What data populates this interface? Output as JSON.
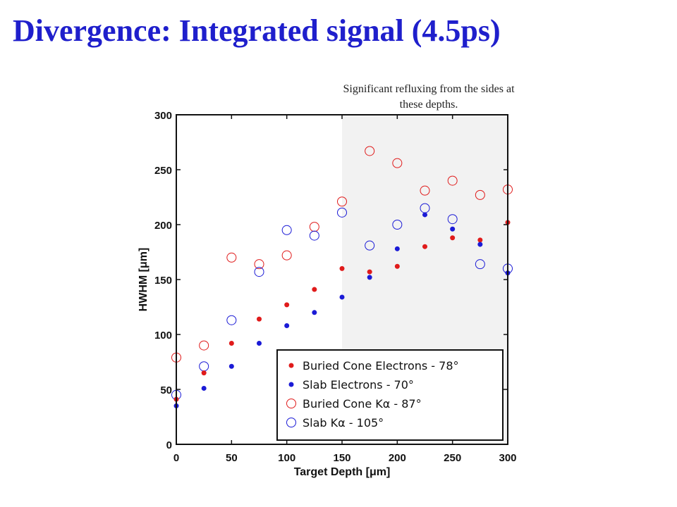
{
  "slide": {
    "title": "Divergence: Integrated signal (4.5ps)",
    "note": "Significant refluxing from the sides at these depths."
  },
  "colors": {
    "title": "#1f1fcc",
    "red": "#e01b1b",
    "blue": "#1b1bd6",
    "shade": "#f2f2f2"
  },
  "chart_data": {
    "type": "scatter",
    "xlabel": "Target Depth [μm]",
    "ylabel": "HWHM [μm]",
    "xlim": [
      0,
      300
    ],
    "ylim": [
      0,
      300
    ],
    "xticks": [
      0,
      50,
      100,
      150,
      200,
      250,
      300
    ],
    "yticks": [
      0,
      50,
      100,
      150,
      200,
      250,
      300
    ],
    "grid": false,
    "legend_position": "bottom-right",
    "shaded_region": {
      "x_from": 150,
      "x_to": 300,
      "color": "#f2f2f2"
    },
    "series": [
      {
        "name": "Buried Cone Electrons - 78°",
        "marker": "filled",
        "color": "#e01b1b",
        "x": [
          0,
          25,
          50,
          75,
          100,
          125,
          150,
          175,
          200,
          225,
          250,
          275,
          300
        ],
        "y": [
          41,
          65,
          92,
          114,
          127,
          141,
          160,
          157,
          162,
          180,
          188,
          186,
          202
        ]
      },
      {
        "name": "Slab Electrons - 70°",
        "marker": "filled",
        "color": "#1b1bd6",
        "x": [
          0,
          25,
          50,
          75,
          100,
          125,
          150,
          175,
          200,
          225,
          250,
          275,
          300
        ],
        "y": [
          35,
          51,
          71,
          92,
          108,
          120,
          134,
          152,
          178,
          209,
          196,
          182,
          156
        ]
      },
      {
        "name": "Buried Cone Kα - 87°",
        "marker": "open",
        "color": "#e01b1b",
        "x": [
          0,
          25,
          50,
          75,
          100,
          125,
          150,
          175,
          200,
          225,
          250,
          275,
          300
        ],
        "y": [
          79,
          90,
          170,
          164,
          172,
          198,
          221,
          267,
          256,
          231,
          240,
          227,
          232
        ]
      },
      {
        "name": "Slab Kα - 105°",
        "marker": "open",
        "color": "#1b1bd6",
        "x": [
          0,
          25,
          50,
          75,
          100,
          125,
          150,
          175,
          200,
          225,
          250,
          275,
          300
        ],
        "y": [
          45,
          71,
          113,
          157,
          195,
          190,
          211,
          181,
          200,
          215,
          205,
          164,
          160
        ]
      }
    ]
  }
}
